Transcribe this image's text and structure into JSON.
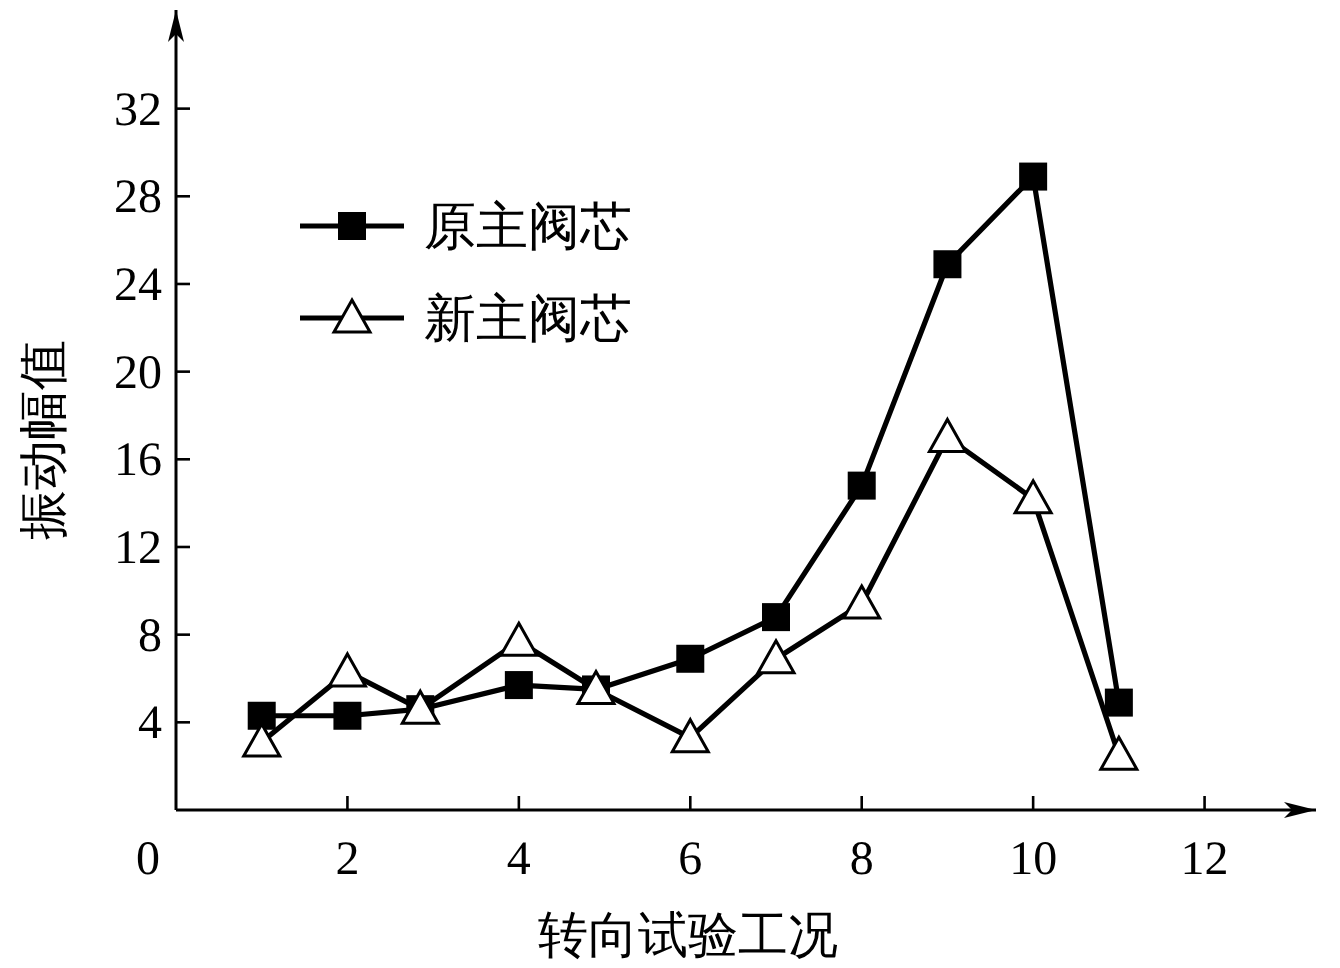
{
  "chart_data": {
    "type": "line",
    "xlabel": "转向试验工况",
    "ylabel": "振动幅值",
    "xlim": [
      0,
      13.3
    ],
    "ylim": [
      0,
      36.5
    ],
    "xticks": [
      0,
      2,
      4,
      6,
      8,
      10,
      12
    ],
    "yticks": [
      4,
      8,
      12,
      16,
      20,
      24,
      28,
      32
    ],
    "grid": false,
    "legend": "top left",
    "line_style": "solid",
    "series": [
      {
        "name": "原主阀芯",
        "color": "#000000",
        "marker": "square",
        "x": [
          1,
          2,
          2.85,
          4,
          4.9,
          6,
          7,
          8,
          9,
          10,
          11
        ],
        "values": [
          4.3,
          4.3,
          4.6,
          5.7,
          5.5,
          6.9,
          8.8,
          14.8,
          24.9,
          28.9,
          4.9
        ]
      },
      {
        "name": "新主阀芯",
        "color": "#000000",
        "marker": "triangle",
        "x": [
          1,
          2,
          2.85,
          4,
          4.9,
          6,
          7,
          8,
          9,
          10,
          11
        ],
        "values": [
          3.1,
          6.3,
          4.6,
          7.7,
          5.5,
          3.3,
          6.9,
          9.4,
          17.0,
          14.2,
          2.5
        ]
      }
    ]
  }
}
